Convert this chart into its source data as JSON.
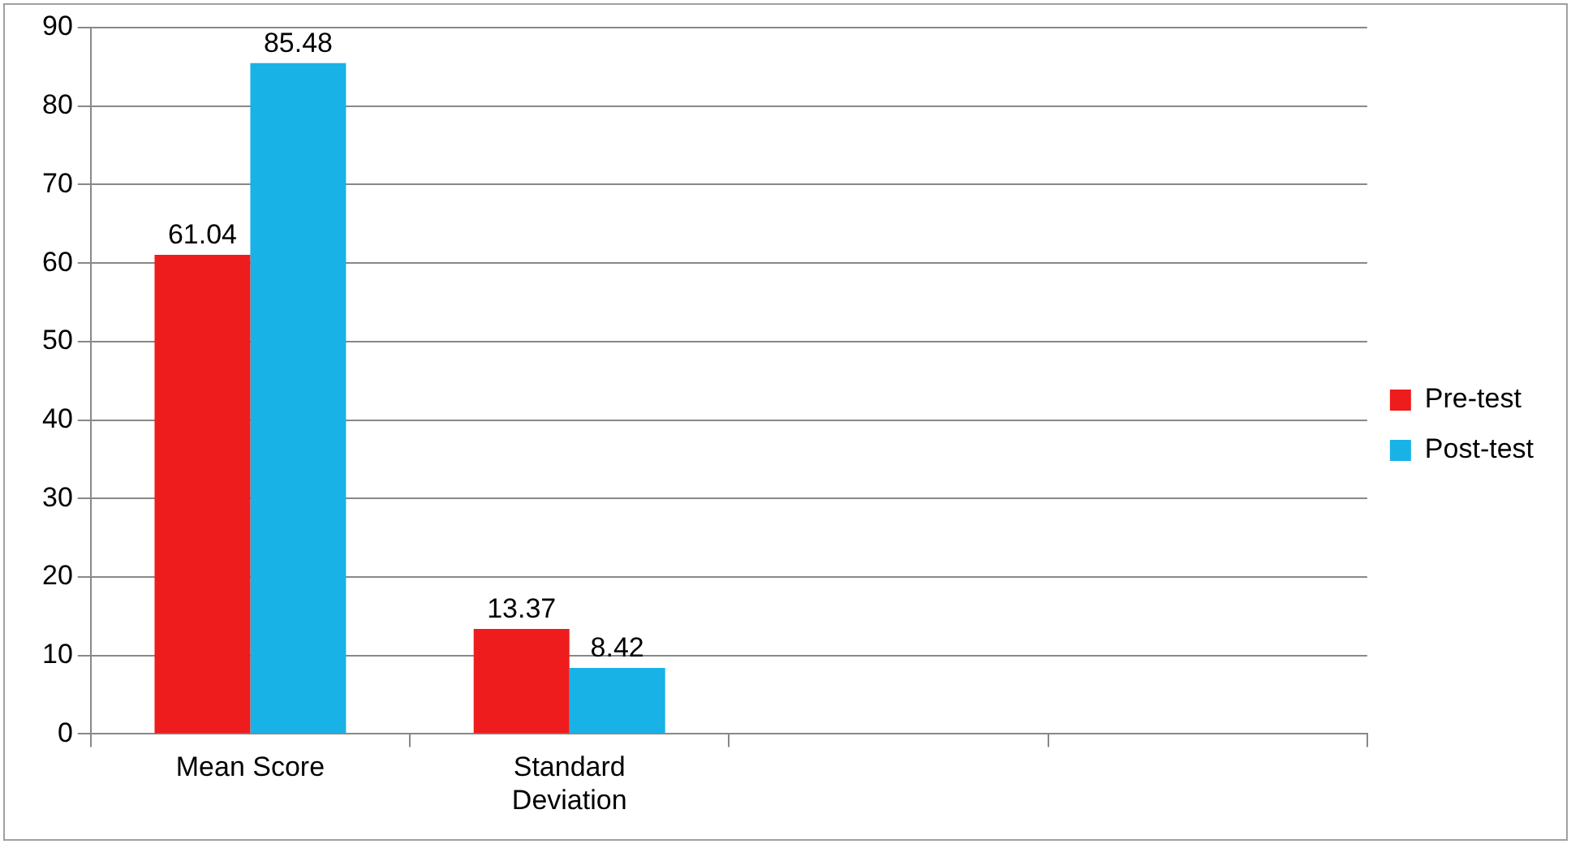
{
  "chart_data": {
    "type": "bar",
    "categories": [
      "Mean Score",
      "Standard Deviation",
      null,
      null
    ],
    "series": [
      {
        "name": "Pre-test",
        "color": "#ee1c1c",
        "values": [
          61.04,
          13.37,
          null,
          null
        ]
      },
      {
        "name": "Post-test",
        "color": "#19b2e6",
        "values": [
          85.48,
          8.42,
          null,
          null
        ]
      }
    ],
    "ylim": [
      0,
      90
    ],
    "yticks": [
      0,
      10,
      20,
      30,
      40,
      50,
      60,
      70,
      80,
      90
    ],
    "grid": "y",
    "legend": "right",
    "data_labels": true
  }
}
